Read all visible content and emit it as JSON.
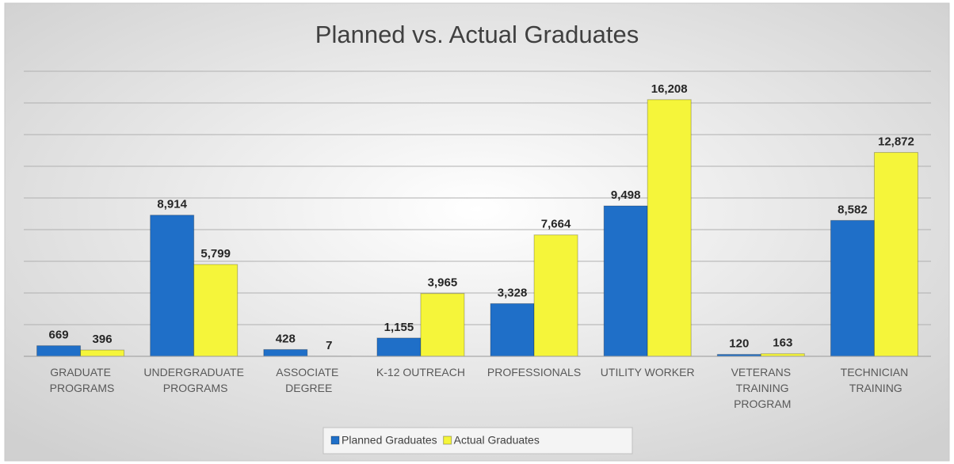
{
  "chart_data": {
    "type": "bar",
    "title": "Planned vs. Actual Graduates",
    "categories": [
      "GRADUATE PROGRAMS",
      "UNDERGRADUATE PROGRAMS",
      "ASSOCIATE DEGREE",
      "K-12 OUTREACH",
      "PROFESSIONALS",
      "UTILITY WORKER",
      "VETERANS TRAINING PROGRAM",
      "TECHNICIAN TRAINING"
    ],
    "series": [
      {
        "name": "Planned Graduates",
        "color": "#1f6fc8",
        "values": [
          669,
          8914,
          428,
          1155,
          3328,
          9498,
          120,
          8582
        ],
        "value_labels": [
          "669",
          "8,914",
          "428",
          "1,155",
          "3,328",
          "9,498",
          "120",
          "8,582"
        ]
      },
      {
        "name": "Actual Graduates",
        "color": "#f5f53a",
        "values": [
          396,
          5799,
          7,
          3965,
          7664,
          16208,
          163,
          12872
        ],
        "value_labels": [
          "396",
          "5,799",
          "7",
          "3,965",
          "7,664",
          "16,208",
          "163",
          "12,872"
        ]
      }
    ],
    "ylim": [
      0,
      18000
    ],
    "yticks": [
      0,
      2000,
      4000,
      6000,
      8000,
      10000,
      12000,
      14000,
      16000,
      18000
    ],
    "grid": true,
    "legend": "bottom"
  }
}
